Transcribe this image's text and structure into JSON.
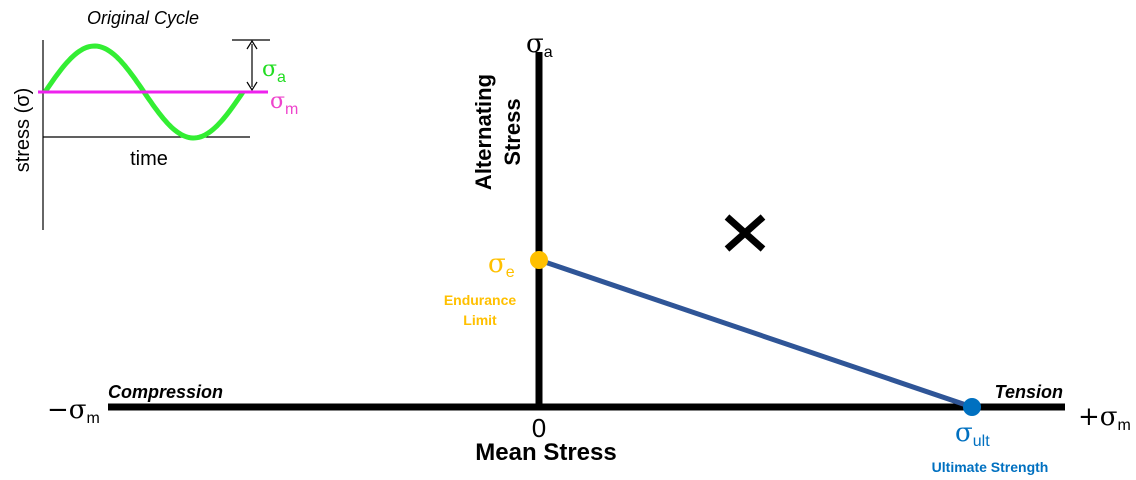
{
  "inset": {
    "title": "Original Cycle",
    "y_label": "stress (σ)",
    "x_label": "time",
    "amplitude_label": {
      "symbol": "σ",
      "sub": "a"
    },
    "mean_label": {
      "symbol": "σ",
      "sub": "m"
    }
  },
  "axes": {
    "y_label": {
      "symbol": "σ",
      "sub": "a"
    },
    "y_title": [
      "Alternating",
      "Stress"
    ],
    "x_title": "Mean Stress",
    "origin": "0",
    "left_end": {
      "symbol": "−σ",
      "sub": "m"
    },
    "right_end": {
      "symbol": "+σ",
      "sub": "m"
    },
    "left_region": "Compression",
    "right_region": "Tension"
  },
  "points": {
    "endurance": {
      "symbol": "σ",
      "sub": "e",
      "label": [
        "Endurance",
        "Limit"
      ]
    },
    "ultimate": {
      "symbol": "σ",
      "sub": "ult",
      "label": "Ultimate Strength"
    }
  }
}
